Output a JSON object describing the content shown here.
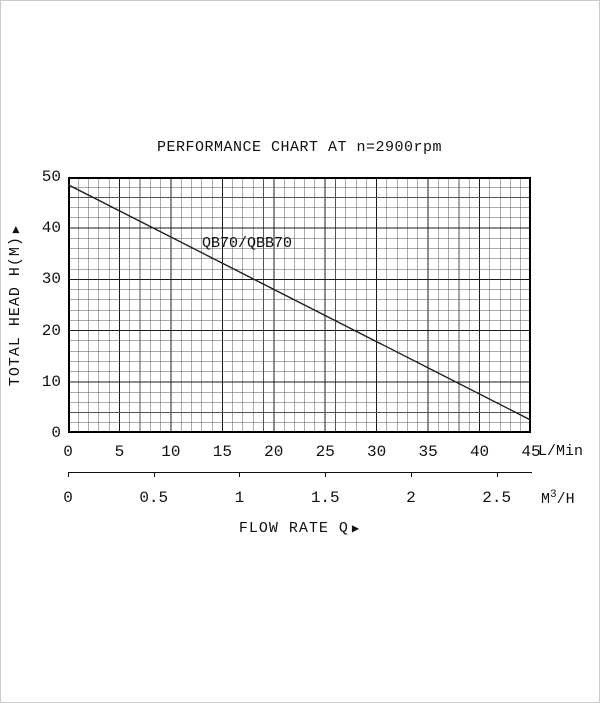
{
  "glyphs": {
    "arrow": "▶"
  },
  "chart_data": {
    "type": "line",
    "title": "PERFORMANCE CHART AT n=2900rpm",
    "series": [
      {
        "name": "QB70/QBB70",
        "x": [
          0,
          45
        ],
        "y": [
          48.5,
          2.5
        ]
      }
    ],
    "y_axis": {
      "label": "TOTAL HEAD H(M)",
      "ticks": [
        0,
        10,
        20,
        30,
        40,
        50
      ],
      "range": [
        0,
        50
      ]
    },
    "x_axis_primary": {
      "unit": "L/Min",
      "ticks": [
        0,
        5,
        10,
        15,
        20,
        25,
        30,
        35,
        40,
        45
      ],
      "range": [
        0,
        45
      ]
    },
    "x_axis_secondary": {
      "unit_parts": {
        "base": "M",
        "sup": "3",
        "rest": "/H"
      },
      "ticks": [
        0,
        0.5,
        1,
        1.5,
        2,
        2.5
      ],
      "range": [
        0,
        2.7
      ]
    },
    "x_title": "FLOW RATE  Q",
    "grid": {
      "x_minor": 1,
      "x_major": 5,
      "y_minor": 2,
      "y_major": 10,
      "grid_on": true
    },
    "legend": "none"
  }
}
